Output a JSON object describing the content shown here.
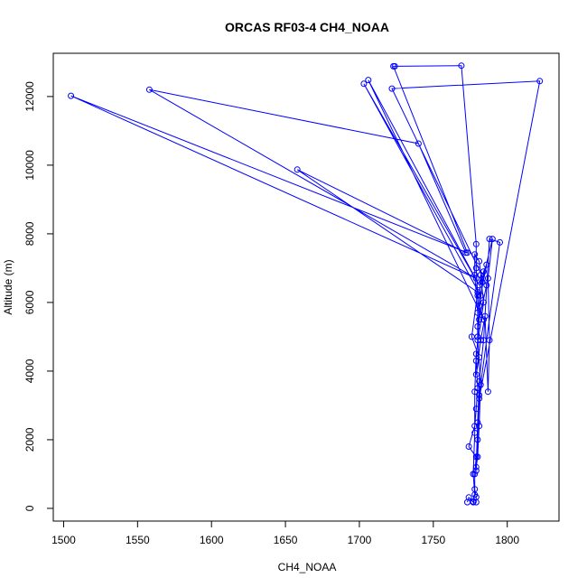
{
  "chart_data": {
    "type": "line",
    "title": "ORCAS RF03-4 CH4_NOAA",
    "xlabel": "CH4_NOAA",
    "ylabel": "Altitude (m)",
    "xlim": [
      1493,
      1835
    ],
    "ylim": [
      -370,
      13260
    ],
    "xticks": [
      1500,
      1550,
      1600,
      1650,
      1700,
      1750,
      1800
    ],
    "yticks": [
      0,
      2000,
      4000,
      6000,
      8000,
      10000,
      12000
    ],
    "grid": false,
    "series": [
      {
        "color": "#0000ff",
        "markers": "open-circle",
        "points": [
          [
            1773,
            180
          ],
          [
            1774,
            320
          ],
          [
            1777,
            180
          ],
          [
            1779,
            180
          ],
          [
            1779,
            330
          ],
          [
            1778,
            560
          ],
          [
            1778,
            1000
          ],
          [
            1779,
            1500
          ],
          [
            1774,
            1800
          ],
          [
            1778,
            2400
          ],
          [
            1779,
            2900
          ],
          [
            1780,
            3500
          ],
          [
            1779,
            4300
          ],
          [
            1780,
            4900
          ],
          [
            1781,
            5500
          ],
          [
            1780,
            6200
          ],
          [
            1779,
            7000
          ],
          [
            1779,
            7700
          ],
          [
            1769,
            12900
          ],
          [
            1724,
            12880
          ],
          [
            1723,
            12880
          ],
          [
            1773,
            7450
          ],
          [
            1505,
            12020
          ],
          [
            1779,
            6700
          ],
          [
            1558,
            12200
          ],
          [
            1740,
            10630
          ],
          [
            1772,
            7450
          ],
          [
            1658,
            9870
          ],
          [
            1780,
            6300
          ],
          [
            1776,
            5000
          ],
          [
            1781,
            4400
          ],
          [
            1779,
            3900
          ],
          [
            1782,
            4900
          ],
          [
            1785,
            5600
          ],
          [
            1787,
            3400
          ],
          [
            1788,
            4900
          ],
          [
            1787,
            6700
          ],
          [
            1790,
            7850
          ],
          [
            1783,
            6600
          ],
          [
            1781,
            7200
          ],
          [
            1778,
            7400
          ],
          [
            1778,
            6800
          ],
          [
            1780,
            5700
          ],
          [
            1780,
            5000
          ],
          [
            1782,
            3600
          ],
          [
            1781,
            2400
          ],
          [
            1780,
            1500
          ],
          [
            1779,
            1200
          ],
          [
            1780,
            2500
          ],
          [
            1781,
            3700
          ],
          [
            1784,
            4900
          ],
          [
            1788,
            7850
          ],
          [
            1795,
            7750
          ],
          [
            1781,
            3300
          ],
          [
            1780,
            2000
          ],
          [
            1779,
            1100
          ],
          [
            1781,
            3200
          ],
          [
            1822,
            12450
          ],
          [
            1722,
            12230
          ],
          [
            1786,
            6500
          ],
          [
            1780,
            5300
          ],
          [
            1784,
            6900
          ],
          [
            1786,
            7100
          ],
          [
            1782,
            6200
          ],
          [
            1703,
            12370
          ],
          [
            1781,
            6500
          ],
          [
            1706,
            12480
          ],
          [
            1784,
            5500
          ],
          [
            1781,
            5900
          ],
          [
            1782,
            6800
          ],
          [
            1784,
            6000
          ],
          [
            1779,
            4500
          ],
          [
            1778,
            3400
          ],
          [
            1778,
            2200
          ],
          [
            1777,
            1000
          ],
          [
            1778,
            400
          ],
          [
            1777,
            200
          ]
        ]
      }
    ]
  }
}
